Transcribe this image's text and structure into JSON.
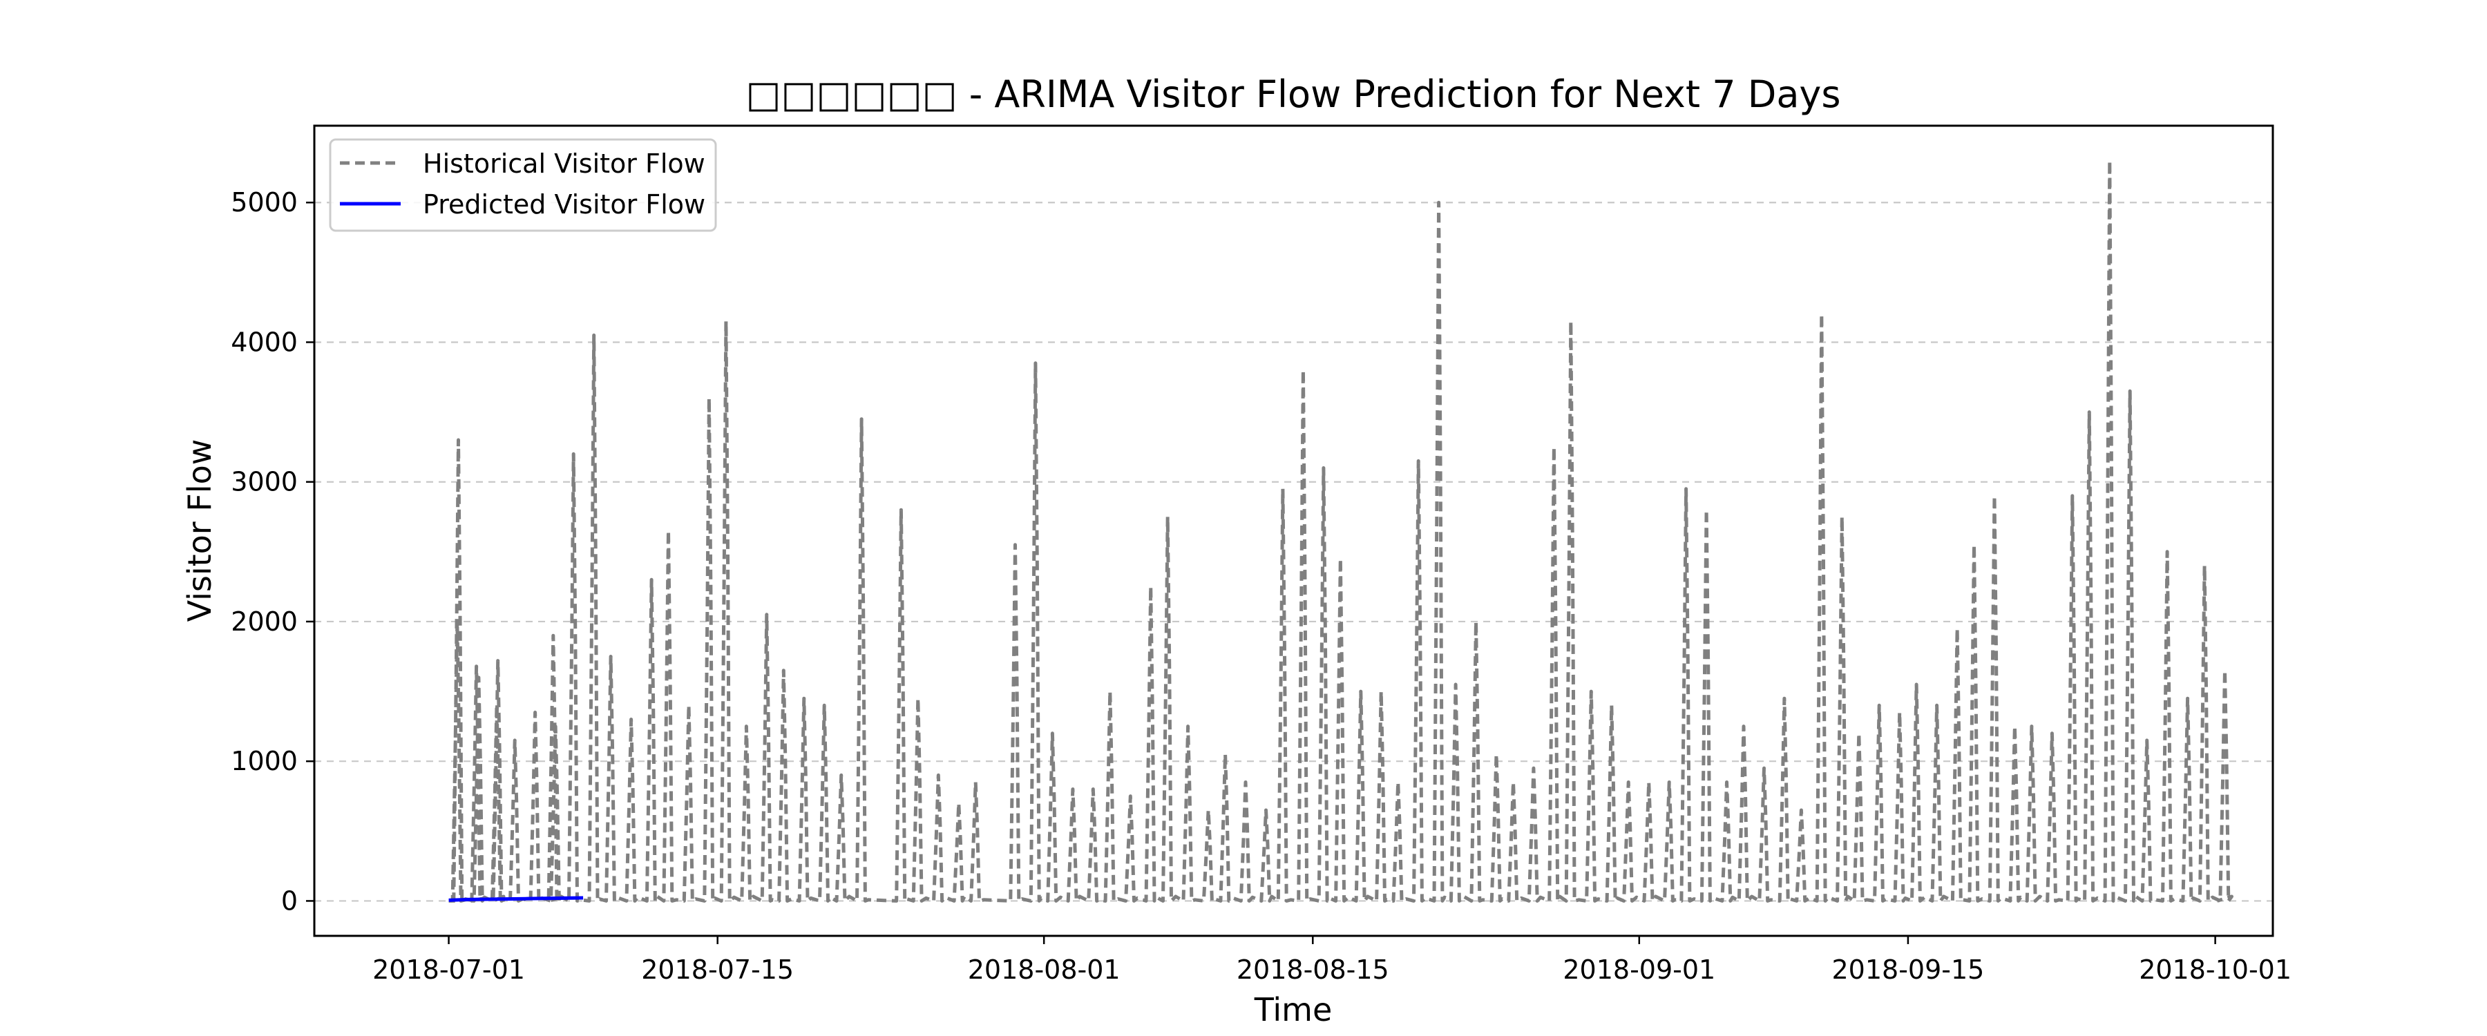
{
  "chart_data": {
    "type": "line",
    "title": "□□□□□□ - ARIMA Visitor Flow Prediction for Next 7 Days",
    "xlabel": "Time",
    "ylabel": "Visitor Flow",
    "xlim": [
      "2018-06-24",
      "2018-10-04"
    ],
    "ylim": [
      -250,
      5550
    ],
    "x_ticks": [
      "2018-07-01",
      "2018-07-15",
      "2018-08-01",
      "2018-08-15",
      "2018-09-01",
      "2018-09-15",
      "2018-10-01"
    ],
    "y_ticks": [
      0,
      1000,
      2000,
      3000,
      4000,
      5000
    ],
    "grid": "y-dashed",
    "legend_position": "top-left",
    "series": [
      {
        "name": "Historical Visitor Flow",
        "style": "dashed",
        "color": "#808080",
        "peaks": [
          [
            "2018-07-01",
            2000
          ],
          [
            "2018-07-01",
            3300
          ],
          [
            "2018-07-02",
            1600
          ],
          [
            "2018-07-02",
            1680
          ],
          [
            "2018-07-03",
            1400
          ],
          [
            "2018-07-03",
            1720
          ],
          [
            "2018-07-04",
            1150
          ],
          [
            "2018-07-05",
            1350
          ],
          [
            "2018-07-06",
            1250
          ],
          [
            "2018-07-06",
            1900
          ],
          [
            "2018-07-07",
            3200
          ],
          [
            "2018-07-08",
            4050
          ],
          [
            "2018-07-09",
            1750
          ],
          [
            "2018-07-10",
            1300
          ],
          [
            "2018-07-11",
            2300
          ],
          [
            "2018-07-12",
            2650
          ],
          [
            "2018-07-13",
            1400
          ],
          [
            "2018-07-14",
            3600
          ],
          [
            "2018-07-15",
            4150
          ],
          [
            "2018-07-16",
            1250
          ],
          [
            "2018-07-17",
            2050
          ],
          [
            "2018-07-18",
            1650
          ],
          [
            "2018-07-19",
            1450
          ],
          [
            "2018-07-20",
            1400
          ],
          [
            "2018-07-21",
            900
          ],
          [
            "2018-07-22",
            3450
          ],
          [
            "2018-07-24",
            2800
          ],
          [
            "2018-07-25",
            1450
          ],
          [
            "2018-07-26",
            900
          ],
          [
            "2018-07-27",
            700
          ],
          [
            "2018-07-28",
            850
          ],
          [
            "2018-07-30",
            2550
          ],
          [
            "2018-07-31",
            3850
          ],
          [
            "2018-08-01",
            1200
          ],
          [
            "2018-08-02",
            800
          ],
          [
            "2018-08-03",
            800
          ],
          [
            "2018-08-04",
            1500
          ],
          [
            "2018-08-05",
            750
          ],
          [
            "2018-08-06",
            2250
          ],
          [
            "2018-08-07",
            2750
          ],
          [
            "2018-08-08",
            1250
          ],
          [
            "2018-08-09",
            650
          ],
          [
            "2018-08-10",
            1050
          ],
          [
            "2018-08-11",
            850
          ],
          [
            "2018-08-12",
            650
          ],
          [
            "2018-08-13",
            2950
          ],
          [
            "2018-08-14",
            3800
          ],
          [
            "2018-08-15",
            3100
          ],
          [
            "2018-08-16",
            2450
          ],
          [
            "2018-08-17",
            1500
          ],
          [
            "2018-08-18",
            1500
          ],
          [
            "2018-08-19",
            850
          ],
          [
            "2018-08-20",
            3150
          ],
          [
            "2018-08-21",
            5000
          ],
          [
            "2018-08-22",
            1550
          ],
          [
            "2018-08-23",
            2000
          ],
          [
            "2018-08-24",
            1050
          ],
          [
            "2018-08-25",
            850
          ],
          [
            "2018-08-26",
            950
          ],
          [
            "2018-08-27",
            3250
          ],
          [
            "2018-08-28",
            4150
          ],
          [
            "2018-08-29",
            1500
          ],
          [
            "2018-08-30",
            1400
          ],
          [
            "2018-08-31",
            850
          ],
          [
            "2018-09-01",
            850
          ],
          [
            "2018-09-02",
            850
          ],
          [
            "2018-09-03",
            2950
          ],
          [
            "2018-09-04",
            2800
          ],
          [
            "2018-09-05",
            850
          ],
          [
            "2018-09-06",
            1250
          ],
          [
            "2018-09-07",
            950
          ],
          [
            "2018-09-08",
            1450
          ],
          [
            "2018-09-09",
            650
          ],
          [
            "2018-09-10",
            4200
          ],
          [
            "2018-09-11",
            2750
          ],
          [
            "2018-09-12",
            1200
          ],
          [
            "2018-09-13",
            1400
          ],
          [
            "2018-09-14",
            1350
          ],
          [
            "2018-09-15",
            1550
          ],
          [
            "2018-09-16",
            1400
          ],
          [
            "2018-09-17",
            1950
          ],
          [
            "2018-09-18",
            2550
          ],
          [
            "2018-09-19",
            2900
          ],
          [
            "2018-09-20",
            1250
          ],
          [
            "2018-09-21",
            1250
          ],
          [
            "2018-09-22",
            1200
          ],
          [
            "2018-09-23",
            2900
          ],
          [
            "2018-09-24",
            3500
          ],
          [
            "2018-09-25",
            5300
          ],
          [
            "2018-09-26",
            3650
          ],
          [
            "2018-09-27",
            1150
          ],
          [
            "2018-09-28",
            2500
          ],
          [
            "2018-09-29",
            1450
          ],
          [
            "2018-09-30",
            2400
          ],
          [
            "2018-10-01",
            1650
          ]
        ]
      },
      {
        "name": "Predicted Visitor Flow",
        "style": "solid",
        "color": "#0000ff",
        "x": [
          "2018-07-01",
          "2018-07-02",
          "2018-07-03",
          "2018-07-04",
          "2018-07-05",
          "2018-07-06",
          "2018-07-07",
          "2018-07-08"
        ],
        "values": [
          5,
          10,
          12,
          14,
          16,
          18,
          20,
          22
        ]
      }
    ]
  }
}
